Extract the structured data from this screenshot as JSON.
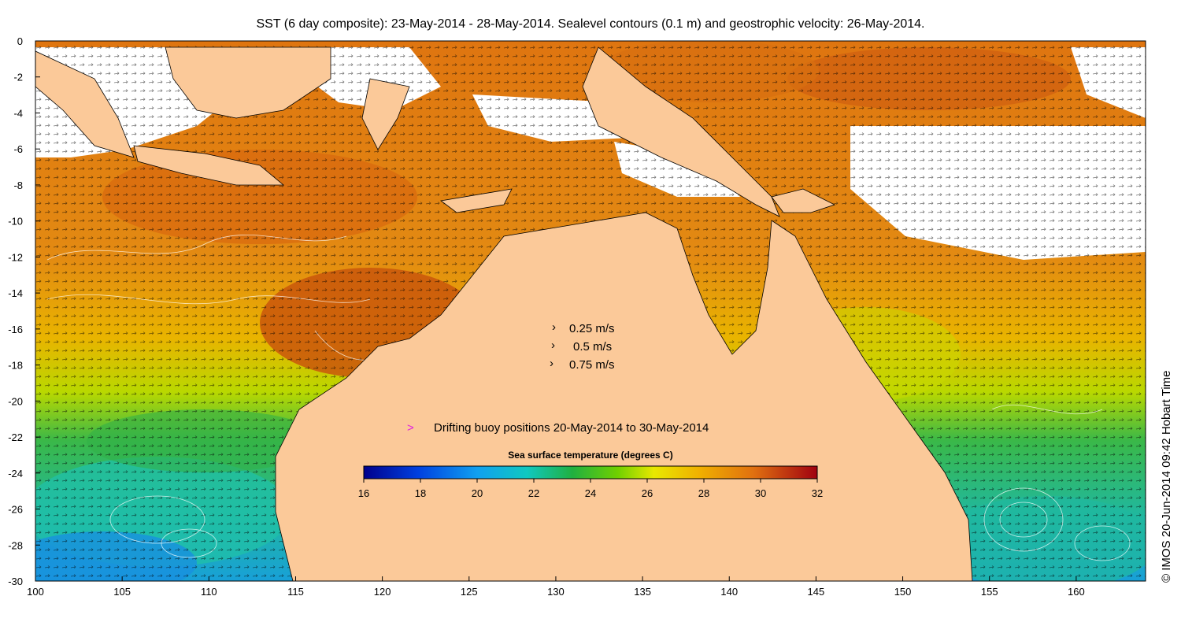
{
  "title": "SST (6 day composite): 23-May-2014 - 28-May-2014. Sealevel contours (0.1 m) and geostrophic velocity: 26-May-2014.",
  "x_axis": {
    "ticks": [
      "100",
      "105",
      "110",
      "115",
      "120",
      "125",
      "130",
      "135",
      "140",
      "145",
      "150",
      "155",
      "160"
    ],
    "range": [
      100,
      164
    ]
  },
  "y_axis": {
    "ticks": [
      "0",
      "-2",
      "-4",
      "-6",
      "-8",
      "-10",
      "-12",
      "-14",
      "-16",
      "-18",
      "-20",
      "-22",
      "-24",
      "-26",
      "-28",
      "-30"
    ],
    "range": [
      -30,
      0
    ]
  },
  "velocity_legend": {
    "items": [
      {
        "label": "0.25 m/s",
        "speed": 0.25
      },
      {
        "label": "0.5 m/s",
        "speed": 0.5
      },
      {
        "label": "0.75 m/s",
        "speed": 0.75
      }
    ]
  },
  "buoy_legend": {
    "marker": ">",
    "label": "Drifting buoy positions 20-May-2014 to 30-May-2014",
    "marker_color": "#e020e0"
  },
  "colorbar": {
    "title": "Sea surface temperature (degrees C)",
    "ticks": [
      "16",
      "18",
      "20",
      "22",
      "24",
      "26",
      "28",
      "30",
      "32"
    ],
    "range": [
      16,
      32
    ]
  },
  "copyright": "© IMOS 20-Jun-2014 09:42 Hobart Time",
  "colors": {
    "land": "#fbc999",
    "warm_sea": "#e07a10",
    "hot_sea": "#b84a0a",
    "cool_sea": "#e9c000",
    "cold_sea": "#2fb04a",
    "coldest_sea": "#1fa0c8"
  }
}
